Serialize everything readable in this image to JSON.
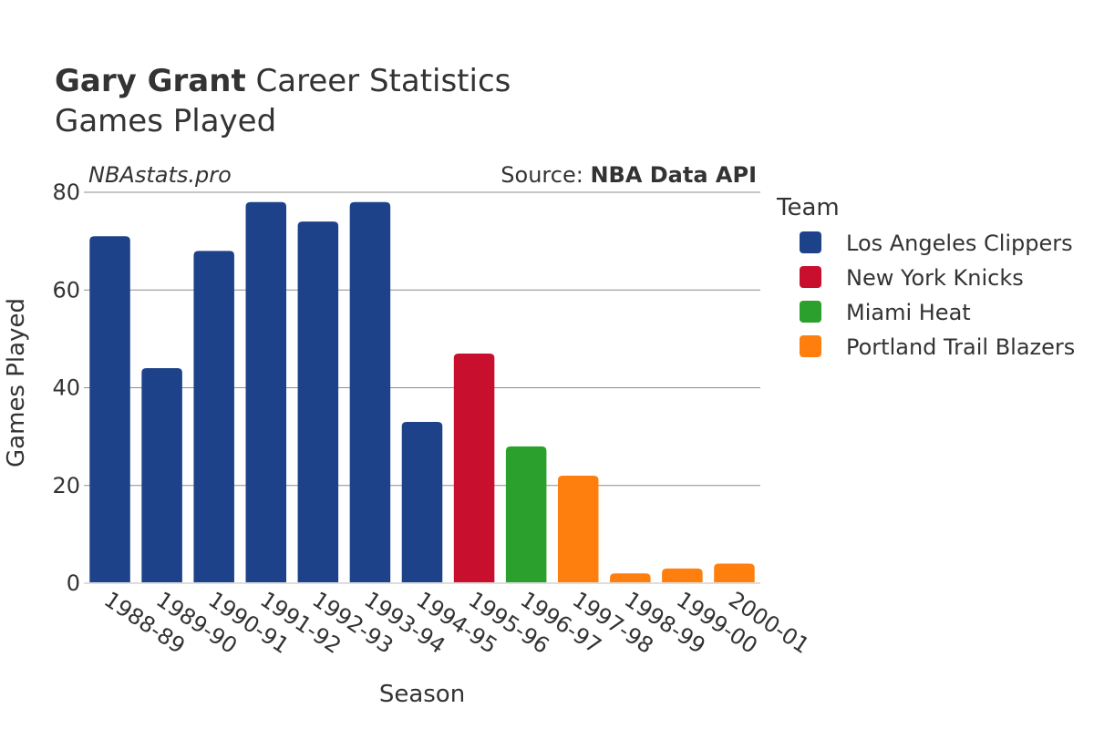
{
  "title": {
    "player": "Gary Grant",
    "rest": " Career Statistics",
    "subtitle": "Games Played"
  },
  "watermark": "NBAstats.pro",
  "source": {
    "prefix": "Source: ",
    "name": "NBA Data API"
  },
  "legend": {
    "title": "Team",
    "items": [
      {
        "label": "Los Angeles Clippers",
        "color": "#1d428a"
      },
      {
        "label": "New York Knicks",
        "color": "#c8102e"
      },
      {
        "label": "Miami Heat",
        "color": "#2ca02c"
      },
      {
        "label": "Portland Trail Blazers",
        "color": "#ff7f0e"
      }
    ]
  },
  "chart_data": {
    "type": "bar",
    "xlabel": "Season",
    "ylabel": "Games Played",
    "ylim": [
      0,
      80
    ],
    "yticks": [
      0,
      20,
      40,
      60,
      80
    ],
    "grid": true,
    "legend_position": "right",
    "categories": [
      "1988-89",
      "1989-90",
      "1990-91",
      "1991-92",
      "1992-93",
      "1993-94",
      "1994-95",
      "1995-96",
      "1996-97",
      "1997-98",
      "1998-99",
      "1999-00",
      "2000-01"
    ],
    "values": [
      71,
      44,
      68,
      78,
      74,
      78,
      33,
      47,
      28,
      22,
      2,
      3,
      4
    ],
    "teams": [
      "Los Angeles Clippers",
      "Los Angeles Clippers",
      "Los Angeles Clippers",
      "Los Angeles Clippers",
      "Los Angeles Clippers",
      "Los Angeles Clippers",
      "Los Angeles Clippers",
      "New York Knicks",
      "Miami Heat",
      "Portland Trail Blazers",
      "Portland Trail Blazers",
      "Portland Trail Blazers",
      "Portland Trail Blazers"
    ]
  }
}
